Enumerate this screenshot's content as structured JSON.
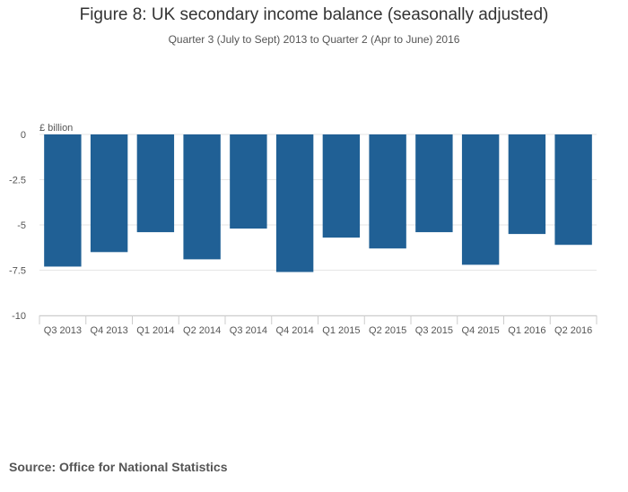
{
  "chart_data": {
    "type": "bar",
    "title": "Figure 8: UK secondary income balance (seasonally adjusted)",
    "subtitle": "Quarter 3 (July to Sept) 2013 to Quarter 2 (Apr to June) 2016",
    "ylabel": "£ billion",
    "xlabel": "",
    "ylim": [
      -10,
      0
    ],
    "yticks": [
      0,
      -2.5,
      -5,
      -7.5,
      -10
    ],
    "ytick_labels": [
      "0",
      "-2.5",
      "-5",
      "-7.5",
      "-10"
    ],
    "categories": [
      "Q3 2013",
      "Q4 2013",
      "Q1 2014",
      "Q2 2014",
      "Q3 2014",
      "Q4 2014",
      "Q1 2015",
      "Q2 2015",
      "Q3 2015",
      "Q4 2015",
      "Q1 2016",
      "Q2 2016"
    ],
    "series": [
      {
        "name": "Secondary income balance",
        "values": [
          -7.3,
          -6.5,
          -5.4,
          -6.9,
          -5.2,
          -7.6,
          -5.7,
          -6.3,
          -5.4,
          -7.2,
          -5.5,
          -6.1
        ]
      }
    ],
    "grid": true,
    "bar_color": "#206095"
  },
  "source": "Source: Office for National Statistics"
}
